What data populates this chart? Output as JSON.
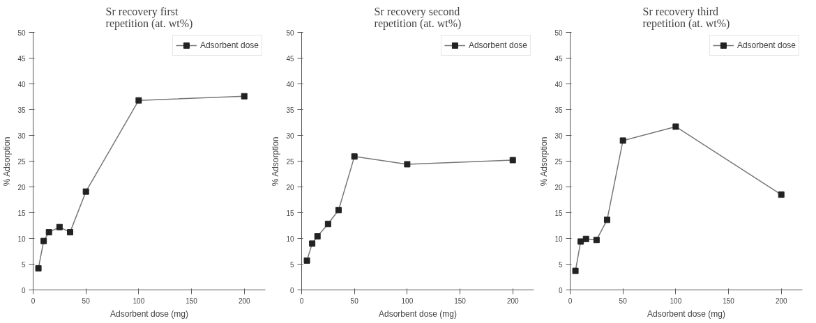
{
  "chart_data": [
    {
      "type": "line",
      "title": "Sr recovery first\nrepetition (at. wt%)",
      "xlabel": "Adsorbent dose (mg)",
      "ylabel": "% Adsorption",
      "x": [
        5,
        10,
        15,
        25,
        35,
        50,
        100,
        200
      ],
      "series": [
        {
          "name": "Adsorbent dose",
          "color": "#222222",
          "values": [
            4.2,
            9.5,
            11.2,
            12.2,
            11.2,
            19.1,
            36.8,
            37.6
          ]
        }
      ],
      "xlim": [
        0,
        220
      ],
      "ylim": [
        0,
        50
      ],
      "xticks": [
        0,
        50,
        100,
        150,
        200
      ],
      "yticks": [
        0,
        5,
        10,
        15,
        20,
        25,
        30,
        35,
        40,
        45,
        50
      ],
      "grid": false,
      "legend": "top right",
      "marker": "square",
      "line_style": "solid"
    },
    {
      "type": "line",
      "title": "Sr recovery second\nrepetition (at. wt%)",
      "xlabel": "Adsorbent dose (mg)",
      "ylabel": "% Adsorption",
      "x": [
        5,
        10,
        15,
        25,
        35,
        50,
        100,
        200
      ],
      "series": [
        {
          "name": "Adsorbent dose",
          "color": "#222222",
          "values": [
            5.7,
            9.0,
            10.4,
            12.8,
            15.5,
            25.9,
            24.4,
            25.2
          ]
        }
      ],
      "xlim": [
        0,
        220
      ],
      "ylim": [
        0,
        50
      ],
      "xticks": [
        0,
        50,
        100,
        150,
        200
      ],
      "yticks": [
        0,
        5,
        10,
        15,
        20,
        25,
        30,
        35,
        40,
        45,
        50
      ],
      "grid": false,
      "legend": "top right",
      "marker": "square",
      "line_style": "solid"
    },
    {
      "type": "line",
      "title": "Sr recovery third\nrepetition (at. wt%)",
      "xlabel": "Adsorbent dose (mg)",
      "ylabel": "% Adsorption",
      "x": [
        5,
        10,
        15,
        25,
        35,
        50,
        100,
        200
      ],
      "series": [
        {
          "name": "Adsorbent dose",
          "color": "#222222",
          "values": [
            3.7,
            9.4,
            9.9,
            9.7,
            13.6,
            29.0,
            31.7,
            18.5
          ]
        }
      ],
      "xlim": [
        0,
        220
      ],
      "ylim": [
        0,
        50
      ],
      "xticks": [
        0,
        50,
        100,
        150,
        200
      ],
      "yticks": [
        0,
        5,
        10,
        15,
        20,
        25,
        30,
        35,
        40,
        45,
        50
      ],
      "grid": false,
      "legend": "top right",
      "marker": "square",
      "line_style": "solid"
    }
  ]
}
